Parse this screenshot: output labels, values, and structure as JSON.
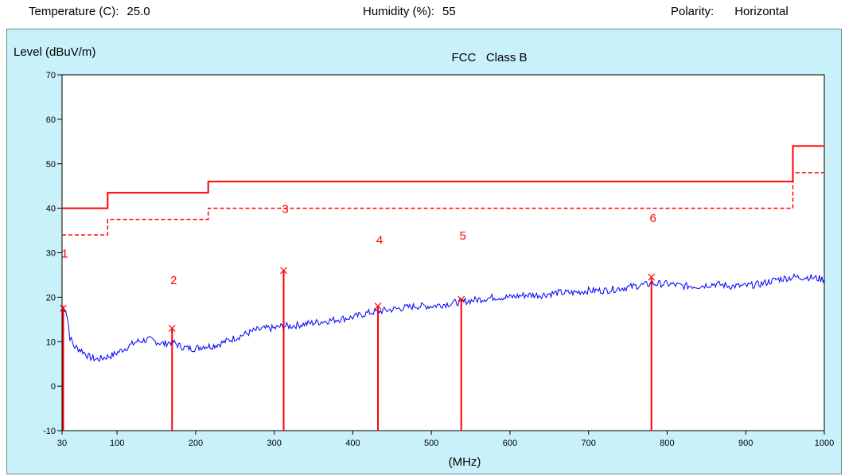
{
  "header": {
    "temperature_label": "Temperature (C):",
    "temperature_value": "25.0",
    "humidity_label": "Humidity (%):",
    "humidity_value": "55",
    "polarity_label": "Polarity:",
    "polarity_value": "Horizontal"
  },
  "colors": {
    "panel_bg": "#c8f1f9",
    "plot_bg": "#ffffff",
    "limit": "#ff0000",
    "trace": "#0000ff",
    "marker": "#ff0000"
  },
  "chart_data": {
    "type": "line",
    "title": "FCC   Class B",
    "ylabel": "Level (dBuV/m)",
    "xlabel": "(MHz)",
    "xlim": [
      30,
      1000
    ],
    "ylim": [
      -10,
      70
    ],
    "x_ticks": [
      30,
      100,
      200,
      300,
      400,
      500,
      600,
      700,
      800,
      900,
      1000
    ],
    "y_ticks": [
      -10,
      0,
      10,
      20,
      30,
      40,
      50,
      60,
      70
    ],
    "grid": false,
    "limit_line": {
      "style": "solid",
      "points": [
        [
          30,
          40
        ],
        [
          88,
          40
        ],
        [
          88,
          43.5
        ],
        [
          216,
          43.5
        ],
        [
          216,
          46
        ],
        [
          960,
          46
        ],
        [
          960,
          54
        ],
        [
          1000,
          54
        ]
      ]
    },
    "margin_line": {
      "style": "dashed",
      "points": [
        [
          30,
          34
        ],
        [
          88,
          34
        ],
        [
          88,
          37.5
        ],
        [
          216,
          37.5
        ],
        [
          216,
          40
        ],
        [
          960,
          40
        ],
        [
          960,
          48
        ],
        [
          1000,
          48
        ]
      ]
    },
    "measured_trace": {
      "style": "solid",
      "points": [
        [
          30,
          18
        ],
        [
          33,
          17.5
        ],
        [
          35,
          17
        ],
        [
          38,
          14
        ],
        [
          40,
          11
        ],
        [
          45,
          9
        ],
        [
          55,
          8
        ],
        [
          65,
          6.5
        ],
        [
          75,
          6
        ],
        [
          85,
          6.5
        ],
        [
          95,
          7
        ],
        [
          110,
          8.5
        ],
        [
          125,
          10
        ],
        [
          140,
          10.5
        ],
        [
          150,
          10
        ],
        [
          160,
          9.5
        ],
        [
          170,
          10
        ],
        [
          180,
          9
        ],
        [
          190,
          8.5
        ],
        [
          200,
          8.5
        ],
        [
          210,
          9
        ],
        [
          220,
          9
        ],
        [
          230,
          9.5
        ],
        [
          245,
          10.5
        ],
        [
          260,
          11.5
        ],
        [
          275,
          12.5
        ],
        [
          290,
          13
        ],
        [
          300,
          13
        ],
        [
          310,
          13.5
        ],
        [
          320,
          13.5
        ],
        [
          340,
          14
        ],
        [
          360,
          14.5
        ],
        [
          380,
          15
        ],
        [
          400,
          15.5
        ],
        [
          420,
          16.5
        ],
        [
          440,
          17
        ],
        [
          460,
          17.5
        ],
        [
          480,
          18
        ],
        [
          500,
          18
        ],
        [
          520,
          18.5
        ],
        [
          540,
          19
        ],
        [
          560,
          19.5
        ],
        [
          580,
          20
        ],
        [
          600,
          20
        ],
        [
          620,
          20.5
        ],
        [
          640,
          20.5
        ],
        [
          660,
          21
        ],
        [
          680,
          21
        ],
        [
          700,
          21.5
        ],
        [
          720,
          21.5
        ],
        [
          740,
          22
        ],
        [
          760,
          22.5
        ],
        [
          780,
          23
        ],
        [
          800,
          23
        ],
        [
          820,
          22.5
        ],
        [
          840,
          22.5
        ],
        [
          860,
          23
        ],
        [
          880,
          22.5
        ],
        [
          900,
          22.5
        ],
        [
          920,
          23
        ],
        [
          940,
          24
        ],
        [
          960,
          24.5
        ],
        [
          980,
          24.5
        ],
        [
          1000,
          24
        ]
      ]
    },
    "spikes": [
      {
        "x": 170,
        "y": 13
      },
      {
        "x": 312,
        "y": 26
      }
    ],
    "markers": [
      {
        "label": "1",
        "x": 31.5,
        "y": 17.5
      },
      {
        "label": "2",
        "x": 170,
        "y": 13
      },
      {
        "label": "3",
        "x": 312,
        "y": 26
      },
      {
        "label": "4",
        "x": 432,
        "y": 18
      },
      {
        "label": "5",
        "x": 538,
        "y": 19.5
      },
      {
        "label": "6",
        "x": 780,
        "y": 24.5
      }
    ]
  }
}
